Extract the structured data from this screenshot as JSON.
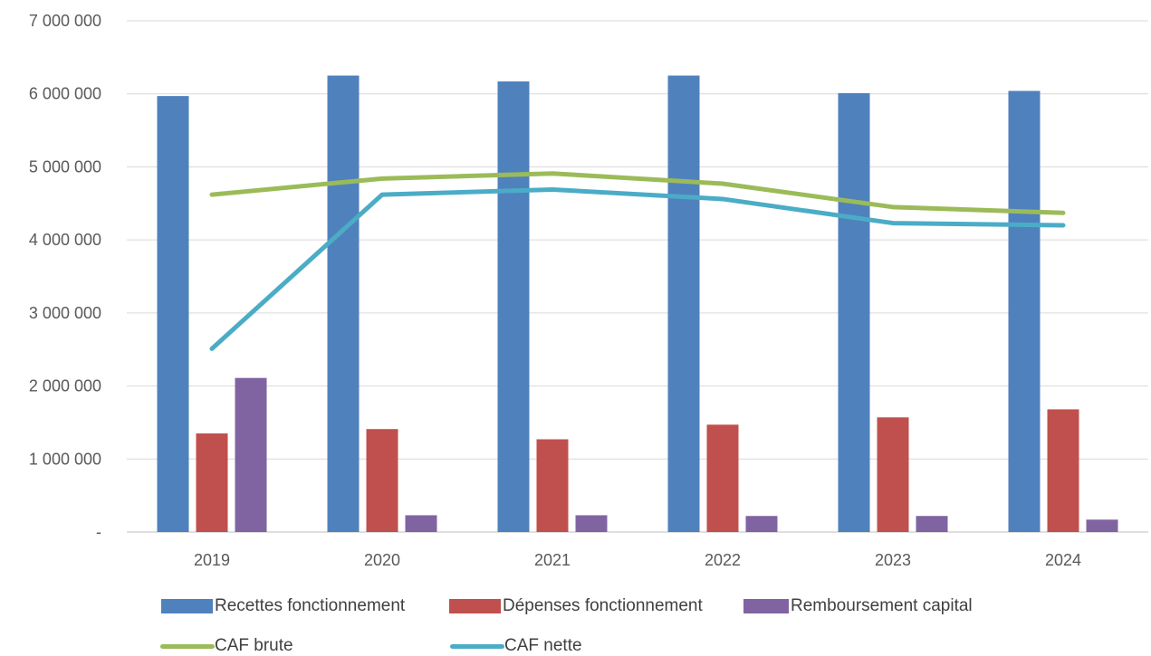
{
  "chart_data": {
    "type": "bar",
    "categories": [
      "2019",
      "2020",
      "2021",
      "2022",
      "2023",
      "2024"
    ],
    "series": [
      {
        "name": "Recettes fonctionnement",
        "kind": "bar",
        "color": "#4f81bd",
        "values": [
          5970000,
          6250000,
          6170000,
          6250000,
          6010000,
          6040000
        ]
      },
      {
        "name": "Dépenses fonctionnement",
        "kind": "bar",
        "color": "#c0504d",
        "values": [
          1350000,
          1410000,
          1270000,
          1470000,
          1570000,
          1680000
        ]
      },
      {
        "name": "Remboursement capital",
        "kind": "bar",
        "color": "#8064a2",
        "values": [
          2110000,
          230000,
          230000,
          220000,
          220000,
          170000
        ]
      },
      {
        "name": "CAF brute",
        "kind": "line",
        "color": "#9bbb59",
        "values": [
          4620000,
          4840000,
          4910000,
          4770000,
          4450000,
          4370000
        ]
      },
      {
        "name": "CAF nette",
        "kind": "line",
        "color": "#4bacc6",
        "values": [
          2510000,
          4620000,
          4690000,
          4560000,
          4230000,
          4200000
        ]
      }
    ],
    "ylim": [
      0,
      7000000
    ],
    "y_ticks": [
      {
        "value": 0,
        "label": "-"
      },
      {
        "value": 1000000,
        "label": "1 000 000"
      },
      {
        "value": 2000000,
        "label": "2 000 000"
      },
      {
        "value": 3000000,
        "label": "3 000 000"
      },
      {
        "value": 4000000,
        "label": "4 000 000"
      },
      {
        "value": 5000000,
        "label": "5 000 000"
      },
      {
        "value": 6000000,
        "label": "6 000 000"
      },
      {
        "value": 7000000,
        "label": "7 000 000"
      }
    ],
    "grid": true,
    "legend_position": "bottom",
    "title": "",
    "xlabel": "",
    "ylabel": ""
  },
  "legend": {
    "recettes": "Recettes fonctionnement",
    "depenses": "Dépenses fonctionnement",
    "remboursement": "Remboursement capital",
    "caf_brute": "CAF brute",
    "caf_nette": "CAF nette"
  }
}
